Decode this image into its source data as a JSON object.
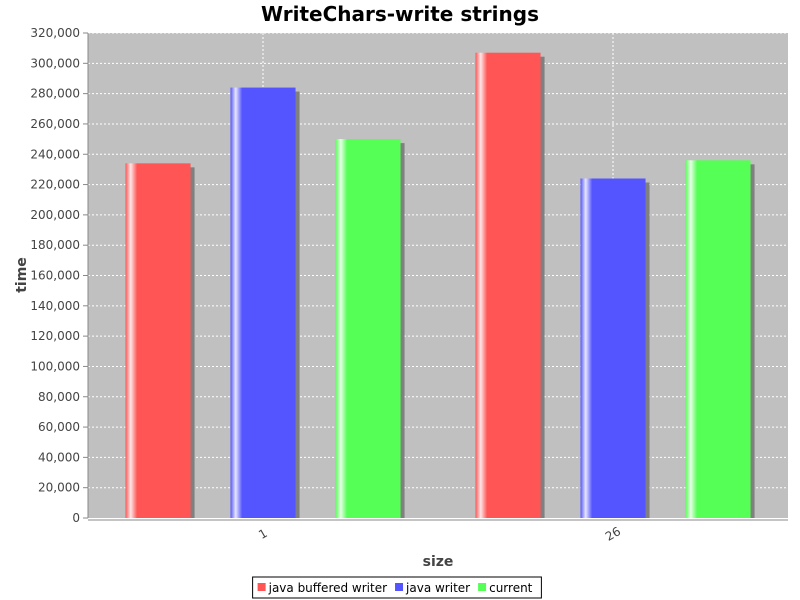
{
  "chart_data": {
    "type": "bar",
    "title": "WriteChars-write strings",
    "xlabel": "size",
    "ylabel": "time",
    "categories": [
      "1",
      "26"
    ],
    "series": [
      {
        "name": "java buffered writer",
        "values": [
          234000,
          307000
        ]
      },
      {
        "name": "java writer",
        "values": [
          284000,
          224000
        ]
      },
      {
        "name": "current",
        "values": [
          250000,
          236000
        ]
      }
    ],
    "ylim": [
      0,
      320000
    ],
    "yticks": [
      "0",
      "20,000",
      "40,000",
      "60,000",
      "80,000",
      "100,000",
      "120,000",
      "140,000",
      "160,000",
      "180,000",
      "200,000",
      "220,000",
      "240,000",
      "260,000",
      "280,000",
      "300,000",
      "320,000"
    ],
    "grid": true,
    "legend_position": "bottom",
    "colors": [
      "#ff5555",
      "#5555ff",
      "#55ff55"
    ],
    "plot_background": "#c0c0c0"
  }
}
